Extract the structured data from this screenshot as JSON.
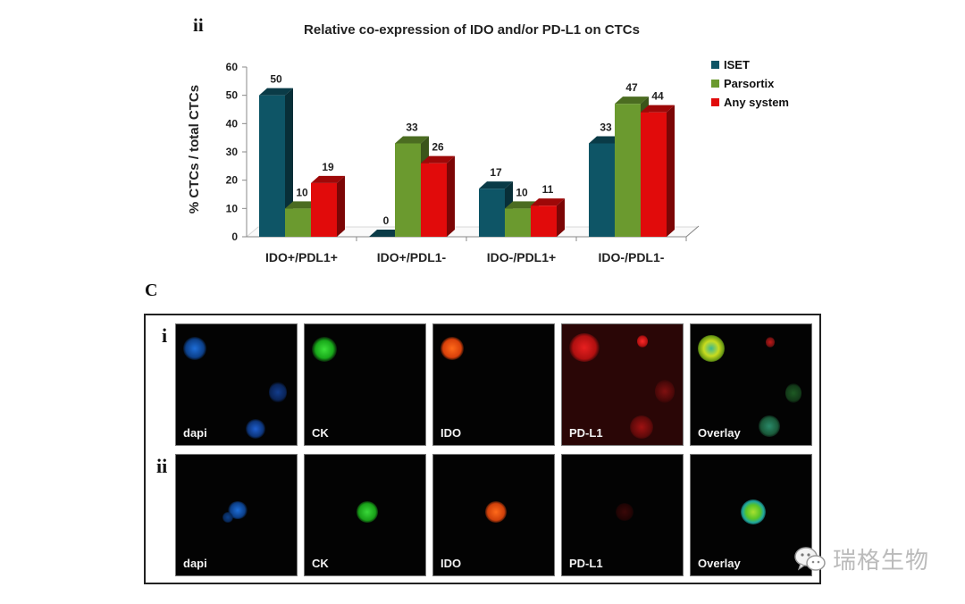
{
  "figure": {
    "chart_panel_label": "ii",
    "micrograph_panel_label": "C"
  },
  "chart_data": {
    "type": "bar",
    "title": "Relative co-expression of IDO and/or PD-L1 on CTCs",
    "xlabel": "",
    "ylabel": "% CTCs / total CTCs",
    "ylim": [
      0,
      60
    ],
    "yticks": [
      0,
      10,
      20,
      30,
      40,
      50,
      60
    ],
    "grid": false,
    "legend_position": "top-right",
    "style": "3d-clustered",
    "categories": [
      "IDO+/PDL1+",
      "IDO+/PDL1-",
      "IDO-/PDL1+",
      "IDO-/PDL1-"
    ],
    "series": [
      {
        "name": "ISET",
        "color": "#0e5566",
        "values": [
          50,
          0,
          17,
          33
        ]
      },
      {
        "name": "Parsortix",
        "color": "#6b9a2f",
        "values": [
          10,
          33,
          10,
          47
        ]
      },
      {
        "name": "Any system",
        "color": "#e10b0b",
        "values": [
          19,
          26,
          11,
          44
        ]
      }
    ]
  },
  "micrographs": {
    "rows": [
      {
        "label": "i",
        "channels": [
          "dapi",
          "CK",
          "IDO",
          "PD-L1",
          "Overlay"
        ]
      },
      {
        "label": "ii",
        "channels": [
          "dapi",
          "CK",
          "IDO",
          "PD-L1",
          "Overlay"
        ]
      }
    ]
  },
  "watermark": {
    "icon": "wechat-icon",
    "text": "瑞格生物"
  }
}
